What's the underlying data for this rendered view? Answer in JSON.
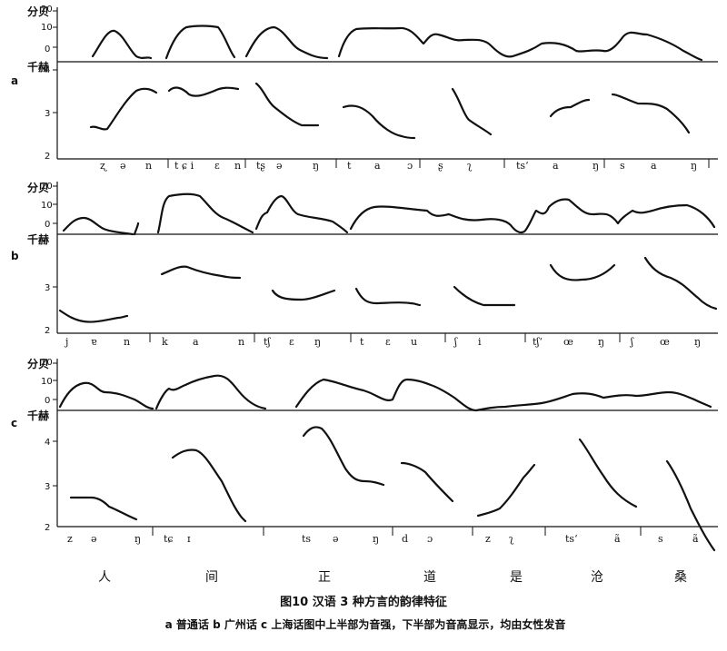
{
  "panels": [
    {
      "label": "a",
      "intensity_unit": "分贝",
      "intensity_ticks": [
        "20",
        "10",
        "0"
      ],
      "pitch_unit": "千赫",
      "pitch_ticks": [
        "4",
        "3",
        "2"
      ],
      "phonetic_segments": [
        {
          "a": "ʐ",
          "b": "ə",
          "c": "n"
        },
        {
          "a": "t ɕ i",
          "b": "ɛ",
          "c": "n"
        },
        {
          "a": "tʂ",
          "b": "ə",
          "c": "ŋ"
        },
        {
          "a": "t",
          "b": "a",
          "c": "ɔ"
        },
        {
          "a": "ʂ",
          "b": "ʅ",
          "c": ""
        },
        {
          "a": "tsʻ",
          "b": "a",
          "c": "ŋ"
        },
        {
          "a": "s",
          "b": "a",
          "c": "ŋ"
        }
      ]
    },
    {
      "label": "b",
      "intensity_unit": "分贝",
      "intensity_ticks": [
        "20",
        "10",
        "0"
      ],
      "pitch_unit": "千赫",
      "pitch_ticks": [
        "3",
        "2"
      ],
      "phonetic_segments": [
        {
          "a": "j",
          "b": "ɐ",
          "c": "n"
        },
        {
          "a": "k",
          "b": "a",
          "c": "n"
        },
        {
          "a": "tʃ",
          "b": "ɛ",
          "c": "ŋ"
        },
        {
          "a": "t",
          "b": "ɛ",
          "c": "u"
        },
        {
          "a": "ʃ",
          "b": "i",
          "c": ""
        },
        {
          "a": "tʃʻ",
          "b": "œ",
          "c": "ŋ"
        },
        {
          "a": "ʃ",
          "b": "œ",
          "c": "ŋ"
        }
      ]
    },
    {
      "label": "c",
      "intensity_unit": "分贝",
      "intensity_ticks": [
        "20",
        "10",
        "0"
      ],
      "pitch_unit": "千赫",
      "pitch_ticks": [
        "4",
        "3",
        "2"
      ],
      "phonetic_segments": [
        {
          "a": "z",
          "b": "ə",
          "c": "ŋ"
        },
        {
          "a": "tɕ",
          "b": "ɪ",
          "c": ""
        },
        {
          "a": "ts",
          "b": "ə",
          "c": "ŋ"
        },
        {
          "a": "d",
          "b": "ɔ",
          "c": ""
        },
        {
          "a": "z",
          "b": "ʅ",
          "c": ""
        },
        {
          "a": "tsʻ",
          "b": "ã",
          "c": ""
        },
        {
          "a": "s",
          "b": "ã",
          "c": ""
        }
      ]
    }
  ],
  "characters": [
    "人",
    "间",
    "正",
    "道",
    "是",
    "沧",
    "桑"
  ],
  "caption": {
    "title": "图10  汉语 3 种方言的韵律特征",
    "subtitle": "a 普通话  b 广州话  c 上海话图中上半部为音强，下半部为音高显示，均由女性发音"
  }
}
